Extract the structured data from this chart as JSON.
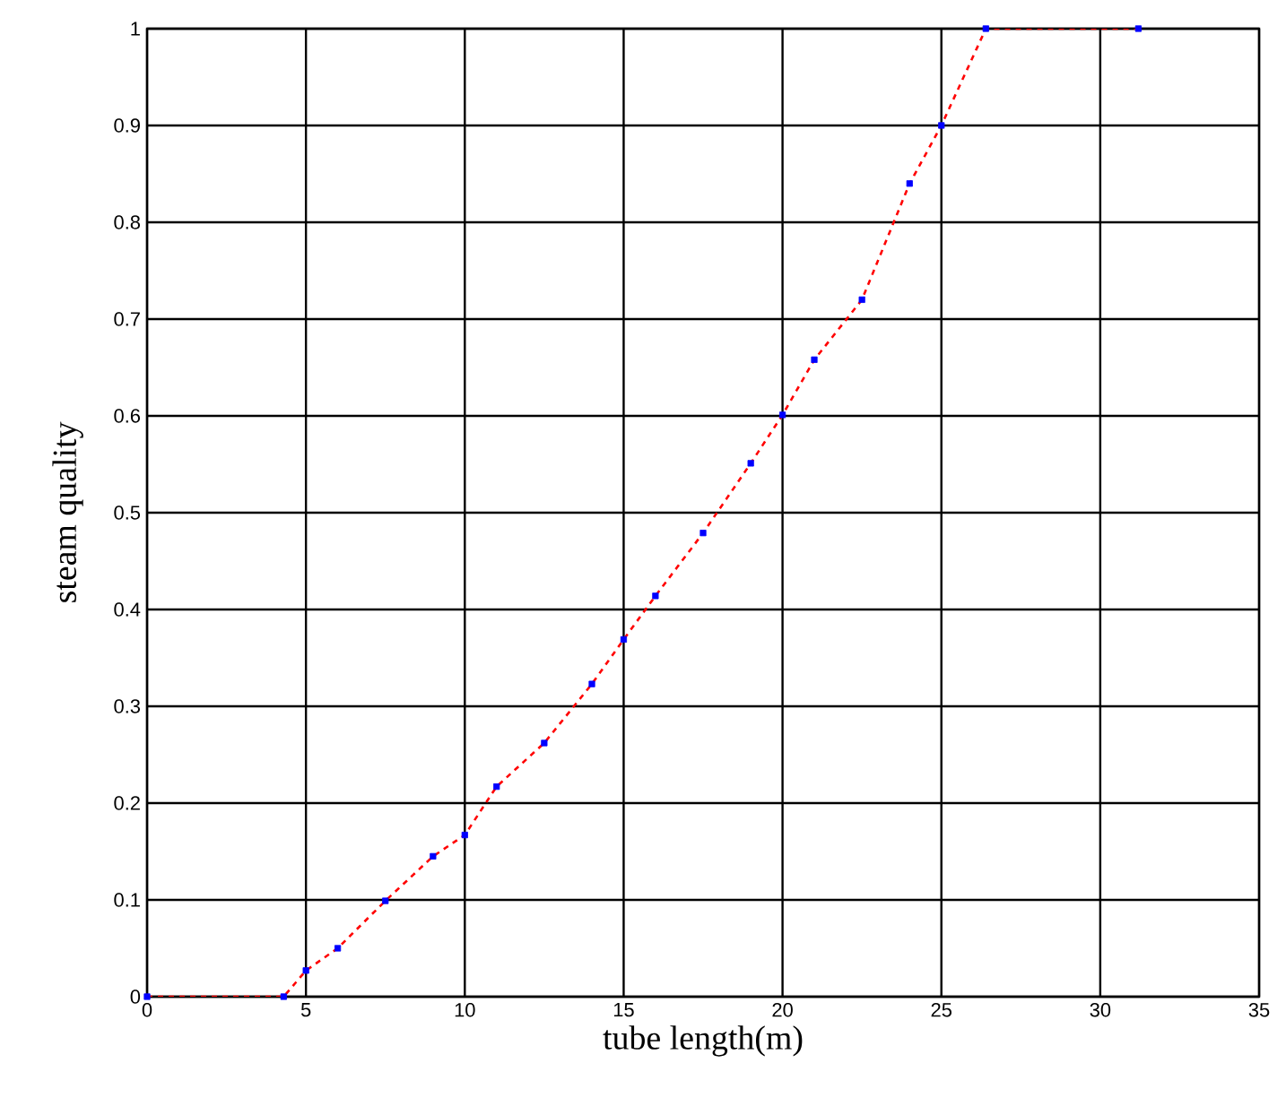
{
  "chart_data": {
    "type": "line",
    "xlabel": "tube length(m)",
    "ylabel": "steam quality",
    "x": [
      0,
      4.3,
      5,
      6,
      7.5,
      9,
      10,
      11,
      12.5,
      14,
      15,
      16,
      17.5,
      19,
      20,
      21,
      22.5,
      24,
      25,
      26.4,
      31.2
    ],
    "series": [
      {
        "color": "#ff0000",
        "line_style": "dashed",
        "values": [
          0,
          0,
          0.027,
          0.05,
          0.099,
          0.145,
          0.167,
          0.217,
          0.262,
          0.323,
          0.369,
          0.414,
          0.479,
          0.551,
          0.601,
          0.658,
          0.72,
          0.84,
          0.9,
          1,
          1
        ]
      },
      {
        "type": "scatter",
        "color": "#0000ff",
        "marker": "square",
        "values": [
          0,
          0,
          0.027,
          0.05,
          0.099,
          0.145,
          0.167,
          0.217,
          0.262,
          0.323,
          0.369,
          0.414,
          0.479,
          0.551,
          0.601,
          0.658,
          0.72,
          0.84,
          0.9,
          1,
          1
        ]
      }
    ],
    "xlim": [
      0,
      35
    ],
    "xticks": [
      0,
      5,
      10,
      15,
      20,
      25,
      30,
      35
    ],
    "ylim": [
      0,
      1
    ],
    "yticks": [
      0,
      0.1,
      0.2,
      0.3,
      0.4,
      0.5,
      0.6,
      0.7,
      0.8,
      0.9,
      1
    ],
    "grid": true
  }
}
